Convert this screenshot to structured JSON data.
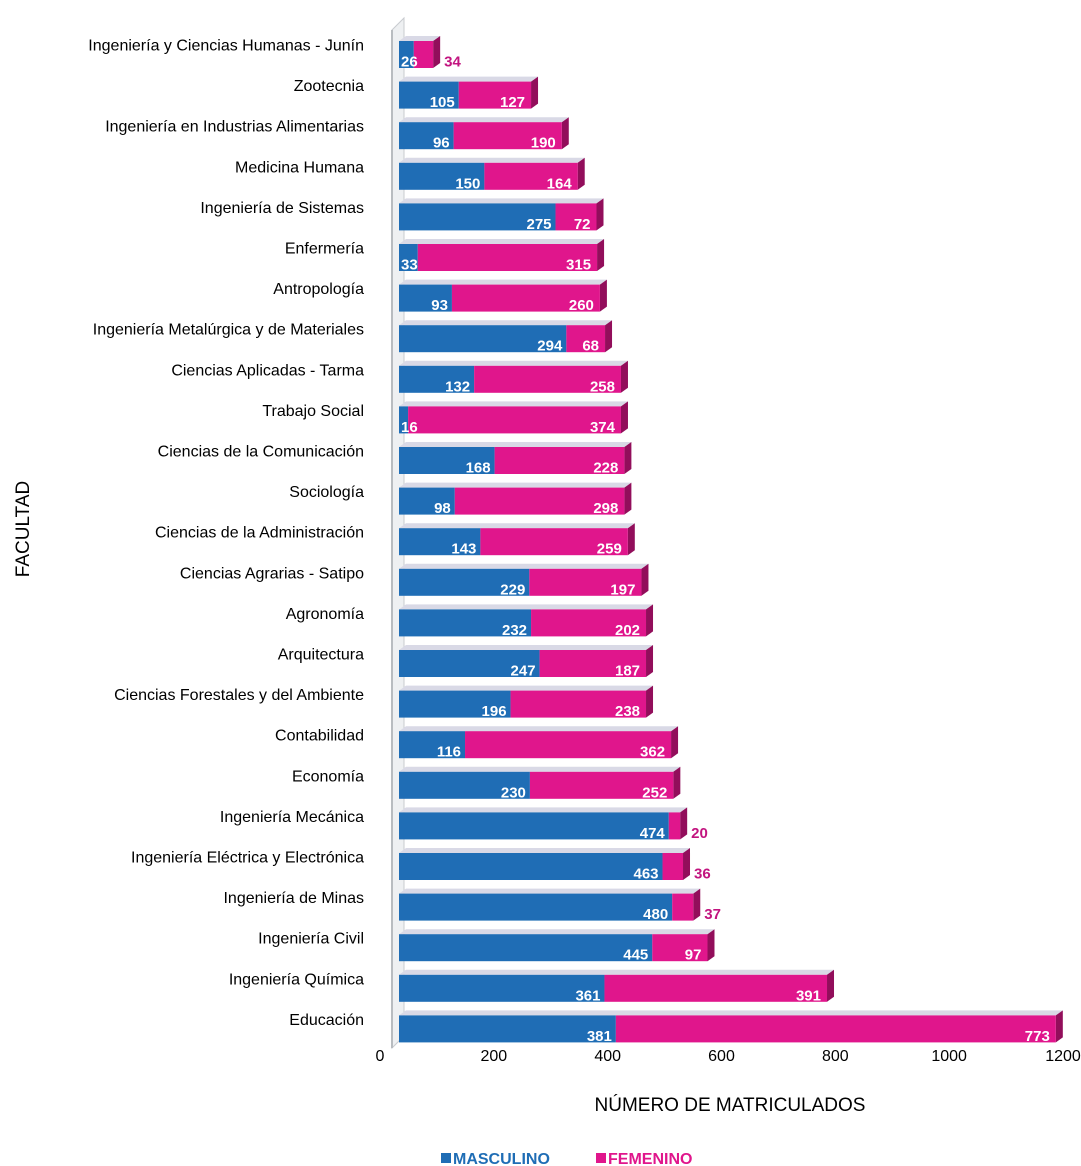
{
  "chart_data": {
    "type": "bar",
    "orientation": "horizontal",
    "stacked": true,
    "categories": [
      "Ingeniería y Ciencias Humanas - Junín",
      "Zootecnia",
      "Ingeniería en Industrias Alimentarias",
      "Medicina Humana",
      "Ingeniería de Sistemas",
      "Enfermería",
      "Antropología",
      "Ingeniería Metalúrgica y de Materiales",
      "Ciencias Aplicadas - Tarma",
      "Trabajo Social",
      "Ciencias de la Comunicación",
      "Sociología",
      "Ciencias de la Administración",
      "Ciencias Agrarias - Satipo",
      "Agronomía",
      "Arquitectura",
      "Ciencias Forestales y del Ambiente",
      "Contabilidad",
      "Economía",
      "Ingeniería Mecánica",
      "Ingeniería Eléctrica y Electrónica",
      "Ingeniería de Minas",
      "Ingeniería Civil",
      "Ingeniería Química",
      "Educación"
    ],
    "series": [
      {
        "name": "MASCULINO",
        "color": "#1f6db5",
        "values": [
          26,
          105,
          96,
          150,
          275,
          33,
          93,
          294,
          132,
          16,
          168,
          98,
          143,
          229,
          232,
          247,
          196,
          116,
          230,
          474,
          463,
          480,
          445,
          361,
          381
        ]
      },
      {
        "name": "FEMENINO",
        "color": "#e0168c",
        "values": [
          34,
          127,
          190,
          164,
          72,
          315,
          260,
          68,
          258,
          374,
          228,
          298,
          259,
          197,
          202,
          187,
          238,
          362,
          252,
          20,
          36,
          37,
          97,
          391,
          773
        ]
      }
    ],
    "xlabel": "NÚMERO DE MATRICULADOS",
    "ylabel": "FACULTAD",
    "xlim": [
      0,
      1200
    ],
    "xticks": [
      "0",
      "200",
      "400",
      "600",
      "800",
      "1000",
      "1200"
    ],
    "legend_position": "bottom",
    "grid": false,
    "outside_label_color": "#c2147f"
  }
}
